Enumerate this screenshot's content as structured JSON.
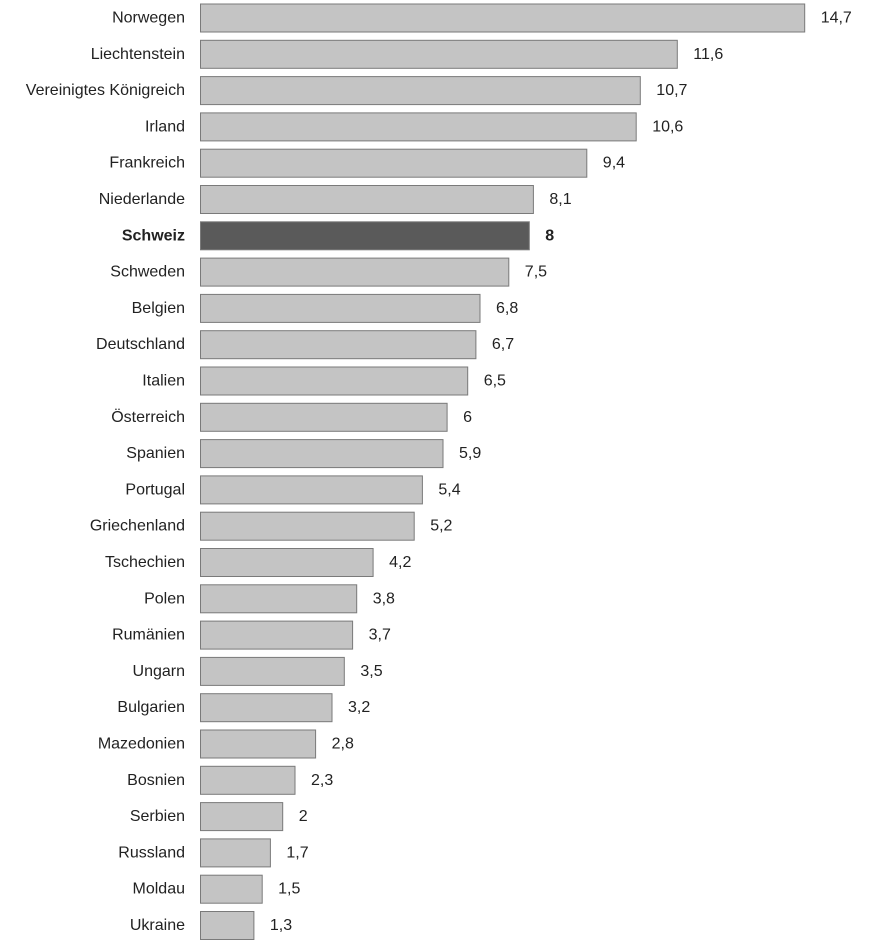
{
  "chart_data": {
    "type": "bar",
    "orientation": "horizontal",
    "categories": [
      "Norwegen",
      "Liechtenstein",
      "Vereinigtes Königreich",
      "Irland",
      "Frankreich",
      "Niederlande",
      "Schweiz",
      "Schweden",
      "Belgien",
      "Deutschland",
      "Italien",
      "Österreich",
      "Spanien",
      "Portugal",
      "Griechenland",
      "Tschechien",
      "Polen",
      "Rumänien",
      "Ungarn",
      "Bulgarien",
      "Mazedonien",
      "Bosnien",
      "Serbien",
      "Russland",
      "Moldau",
      "Ukraine"
    ],
    "values": [
      14.7,
      11.6,
      10.7,
      10.6,
      9.4,
      8.1,
      8,
      7.5,
      6.8,
      6.7,
      6.5,
      6,
      5.9,
      5.4,
      5.2,
      4.2,
      3.8,
      3.7,
      3.5,
      3.2,
      2.8,
      2.3,
      2,
      1.7,
      1.5,
      1.3
    ],
    "value_labels": [
      "14,7",
      "11,6",
      "10,7",
      "10,6",
      "9,4",
      "8,1",
      "8",
      "7,5",
      "6,8",
      "6,7",
      "6,5",
      "6",
      "5,9",
      "5,4",
      "5,2",
      "4,2",
      "3,8",
      "3,7",
      "3,5",
      "3,2",
      "2,8",
      "2,3",
      "2",
      "1,7",
      "1,5",
      "1,3"
    ],
    "highlight_category": "Schweiz",
    "title": "",
    "xlabel": "",
    "ylabel": "",
    "xlim": [
      0,
      14.7
    ],
    "grid": false,
    "legend": "none",
    "colors": {
      "bar": "#c4c4c4",
      "bar_highlight": "#5a5a5a",
      "bar_stroke": "#7a7a7a",
      "text": "#222222"
    }
  }
}
